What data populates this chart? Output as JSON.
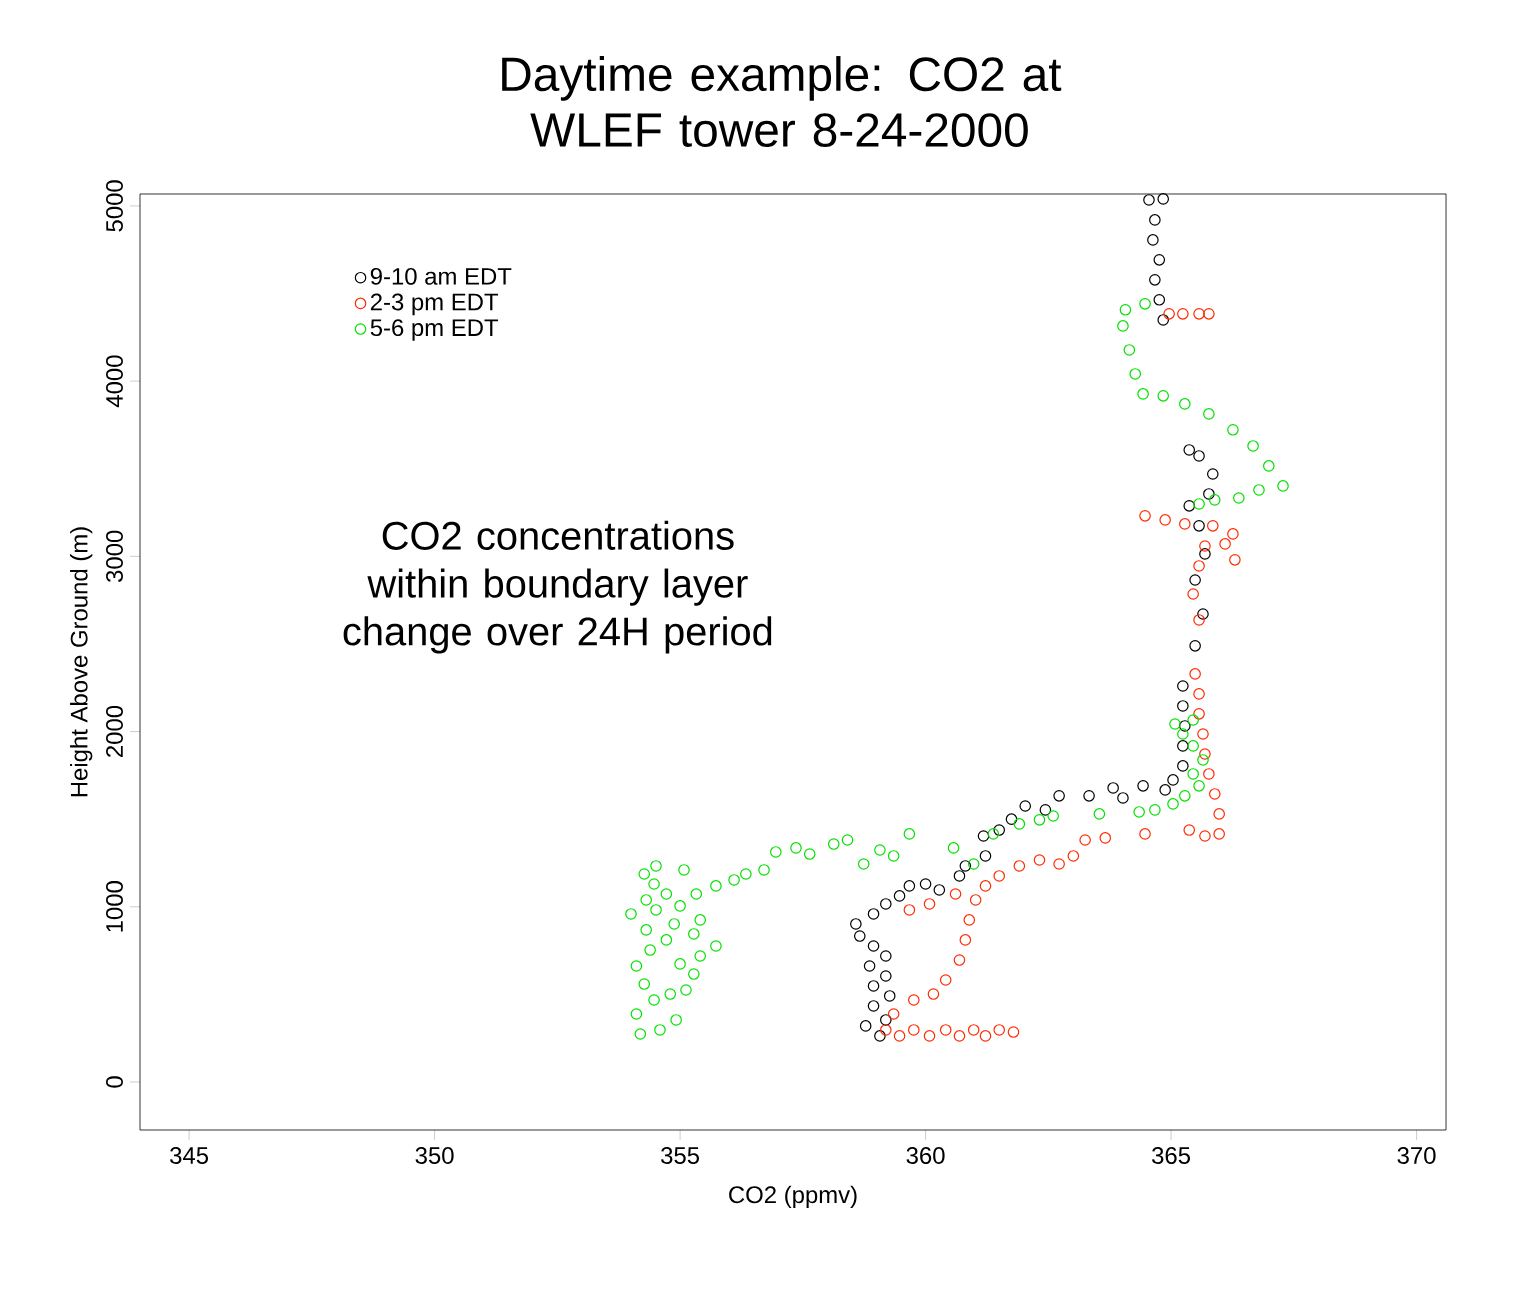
{
  "chart_data": {
    "type": "scatter",
    "title": "Daytime example: CO2 at WLEF tower 8-24-2000",
    "xlabel": "CO2 (ppmv)",
    "ylabel": "Height Above Ground (m)",
    "annotations": [
      "CO2 concentrations within boundary layer change over 24H period"
    ],
    "xlim": [
      344.0,
      370.6
    ],
    "ylim": [
      -274,
      5068
    ],
    "xticks": [
      345,
      350,
      355,
      360,
      365,
      370
    ],
    "yticks": [
      0,
      1000,
      2000,
      3000,
      4000,
      5000
    ],
    "legend": "top left",
    "marker": "circle",
    "grid": false,
    "series": [
      {
        "name": "9-10 am EDT",
        "color": "#000000",
        "x": [
          359.07,
          358.78,
          359.19,
          358.94,
          359.27,
          358.94,
          359.19,
          358.86,
          359.19,
          358.94,
          358.66,
          358.58,
          358.94,
          359.19,
          359.47,
          359.67,
          360.0,
          360.28,
          360.69,
          360.81,
          361.22,
          361.18,
          361.5,
          361.75,
          362.03,
          362.44,
          362.72,
          363.33,
          363.82,
          364.02,
          364.43,
          364.88,
          365.04,
          365.24,
          365.24,
          365.28,
          365.24,
          365.24,
          365.49,
          365.65,
          365.49,
          365.69,
          365.57,
          365.37,
          365.77,
          365.85,
          365.57,
          365.37,
          364.84,
          364.76,
          364.67,
          364.76,
          364.63,
          364.67,
          364.55,
          364.84
        ],
        "values": [
          263,
          320,
          354,
          434,
          491,
          548,
          605,
          662,
          719,
          776,
          833,
          902,
          959,
          1016,
          1062,
          1119,
          1130,
          1096,
          1176,
          1233,
          1290,
          1404,
          1438,
          1500,
          1575,
          1553,
          1633,
          1633,
          1678,
          1621,
          1690,
          1667,
          1724,
          1804,
          1918,
          2032,
          2146,
          2260,
          2489,
          2671,
          2865,
          3014,
          3174,
          3288,
          3356,
          3470,
          3573,
          3607,
          4349,
          4464,
          4578,
          4692,
          4806,
          4920,
          5034,
          5040
        ]
      },
      {
        "name": "2-3 pm EDT",
        "color": "#ff2a00",
        "x": [
          359.19,
          359.47,
          359.76,
          360.08,
          360.41,
          360.69,
          360.98,
          361.22,
          361.5,
          361.79,
          359.35,
          359.76,
          360.16,
          360.41,
          360.69,
          360.81,
          360.89,
          361.02,
          359.67,
          360.08,
          360.61,
          361.22,
          361.5,
          361.91,
          362.32,
          362.72,
          363.01,
          363.25,
          363.66,
          364.47,
          365.37,
          365.69,
          365.98,
          365.98,
          365.89,
          365.77,
          365.69,
          365.65,
          365.57,
          365.57,
          365.49,
          365.57,
          365.45,
          365.57,
          365.69,
          366.1,
          366.3,
          366.26,
          365.85,
          365.28,
          364.88,
          364.47,
          364.96,
          365.24,
          365.57,
          365.77
        ],
        "values": [
          297,
          263,
          297,
          263,
          297,
          263,
          297,
          263,
          297,
          285,
          388,
          468,
          502,
          582,
          696,
          811,
          925,
          1039,
          982,
          1016,
          1073,
          1119,
          1176,
          1233,
          1267,
          1244,
          1290,
          1381,
          1393,
          1416,
          1438,
          1404,
          1416,
          1530,
          1644,
          1758,
          1872,
          1986,
          2101,
          2215,
          2329,
          2637,
          2785,
          2945,
          3059,
          3071,
          2980,
          3128,
          3174,
          3185,
          3208,
          3231,
          4384,
          4384,
          4384,
          4384
        ]
      },
      {
        "name": "5-6 pm EDT",
        "color": "#00e000",
        "x": [
          354.19,
          354.59,
          354.92,
          354.11,
          354.47,
          354.8,
          355.12,
          354.27,
          355.28,
          354.11,
          355.0,
          355.41,
          354.39,
          355.73,
          354.72,
          355.28,
          354.31,
          354.88,
          355.41,
          354.0,
          354.51,
          355.0,
          354.31,
          354.72,
          354.47,
          354.27,
          354.51,
          355.08,
          355.33,
          355.73,
          356.1,
          356.34,
          356.71,
          356.95,
          357.36,
          357.64,
          358.13,
          358.41,
          358.74,
          359.07,
          359.35,
          359.67,
          360.57,
          360.98,
          361.38,
          361.91,
          362.32,
          362.6,
          363.54,
          364.35,
          364.67,
          365.04,
          365.28,
          365.57,
          365.45,
          365.65,
          365.45,
          365.24,
          365.08,
          365.45,
          365.57,
          365.89,
          366.38,
          366.79,
          367.28,
          366.99,
          366.67,
          366.26,
          365.77,
          365.28,
          364.84,
          364.43,
          364.27,
          364.15,
          364.02,
          364.07,
          364.47
        ],
        "values": [
          274,
          297,
          354,
          388,
          468,
          502,
          525,
          559,
          616,
          662,
          674,
          719,
          753,
          776,
          811,
          845,
          868,
          902,
          925,
          959,
          982,
          1005,
          1039,
          1073,
          1130,
          1187,
          1233,
          1210,
          1073,
          1119,
          1153,
          1187,
          1210,
          1313,
          1336,
          1301,
          1358,
          1381,
          1244,
          1324,
          1290,
          1416,
          1336,
          1244,
          1416,
          1473,
          1496,
          1518,
          1530,
          1541,
          1553,
          1587,
          1633,
          1690,
          1758,
          1838,
          1918,
          1986,
          2043,
          2066,
          3299,
          3322,
          3333,
          3379,
          3402,
          3516,
          3630,
          3722,
          3813,
          3870,
          3916,
          3927,
          4041,
          4178,
          4315,
          4407,
          4441
        ]
      }
    ]
  }
}
